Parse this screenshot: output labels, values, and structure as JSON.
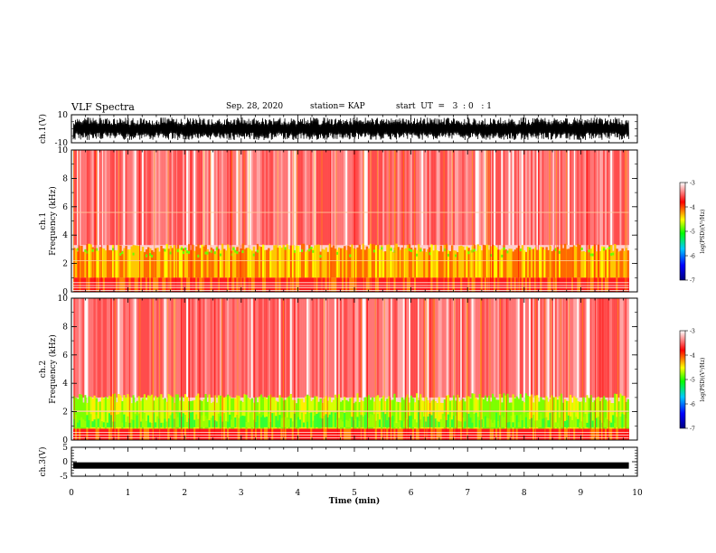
{
  "header": {
    "title": "VLF Spectra",
    "date": "Sep. 28, 2020",
    "station": "station= KAP",
    "start": "start  UT  =   3  : 0   : 1"
  },
  "chart_data": [
    {
      "type": "line",
      "name": "ch1-waveform",
      "ylabel": "ch.1(V)",
      "ylim": [
        -10,
        10
      ],
      "yticks": [
        "10",
        "-10"
      ],
      "x_range": [
        0,
        10
      ],
      "data_extent_min": 9.85,
      "amplitude_typical": 7,
      "color": "#000000"
    },
    {
      "type": "heatmap",
      "name": "ch1-spectrogram",
      "ylabel": "ch.1\nFrequency (kHz)",
      "ylim": [
        0,
        10
      ],
      "yticks": [
        "0",
        "2",
        "4",
        "6",
        "8",
        "10"
      ],
      "x_range": [
        0,
        10
      ],
      "colorbar": {
        "label": "log(PSD)(V²/Hz)",
        "range": [
          -7,
          -3
        ],
        "ticks": [
          "-3",
          "-4",
          "-5",
          "-6",
          "-7"
        ],
        "colors": [
          "#000080",
          "#0000ff",
          "#00c8ff",
          "#00ff00",
          "#ffff00",
          "#ff0000",
          "#ffffff"
        ]
      },
      "bands": [
        {
          "f_low": 3.2,
          "f_high": 10,
          "level": "red-white"
        },
        {
          "f_low": 1.0,
          "f_high": 3.2,
          "level": "yellow-red"
        },
        {
          "f_low": 0,
          "f_high": 1.0,
          "level": "red"
        }
      ]
    },
    {
      "type": "heatmap",
      "name": "ch2-spectrogram",
      "ylabel": "ch.2\nFrequency (kHz)",
      "ylim": [
        0,
        10
      ],
      "yticks": [
        "0",
        "2",
        "4",
        "6",
        "8",
        "10"
      ],
      "x_range": [
        0,
        10
      ],
      "colorbar": {
        "label": "log(PSD)(V²/Hz)",
        "range": [
          -7,
          -3
        ],
        "ticks": [
          "-3",
          "-4",
          "-5",
          "-6",
          "-7"
        ],
        "colors": [
          "#000080",
          "#0000ff",
          "#00c8ff",
          "#00ff00",
          "#ffff00",
          "#ff0000",
          "#ffffff"
        ]
      },
      "bands": [
        {
          "f_low": 3.0,
          "f_high": 10,
          "level": "red-white"
        },
        {
          "f_low": 0.8,
          "f_high": 3.0,
          "level": "green-yellow"
        },
        {
          "f_low": 0,
          "f_high": 0.8,
          "level": "red"
        }
      ]
    },
    {
      "type": "line",
      "name": "ch3-waveform",
      "ylabel": "ch.3(V)",
      "ylim": [
        -5,
        5
      ],
      "yticks": [
        "5",
        "0",
        "-5"
      ],
      "x_range": [
        0,
        10
      ],
      "level": -1.3,
      "amplitude_typical": 0.4,
      "color": "#000000"
    }
  ],
  "xaxis": {
    "label": "Time (min)",
    "ticks": [
      "0",
      "1",
      "2",
      "3",
      "4",
      "5",
      "6",
      "7",
      "8",
      "9",
      "10"
    ],
    "range": [
      0,
      10
    ]
  }
}
